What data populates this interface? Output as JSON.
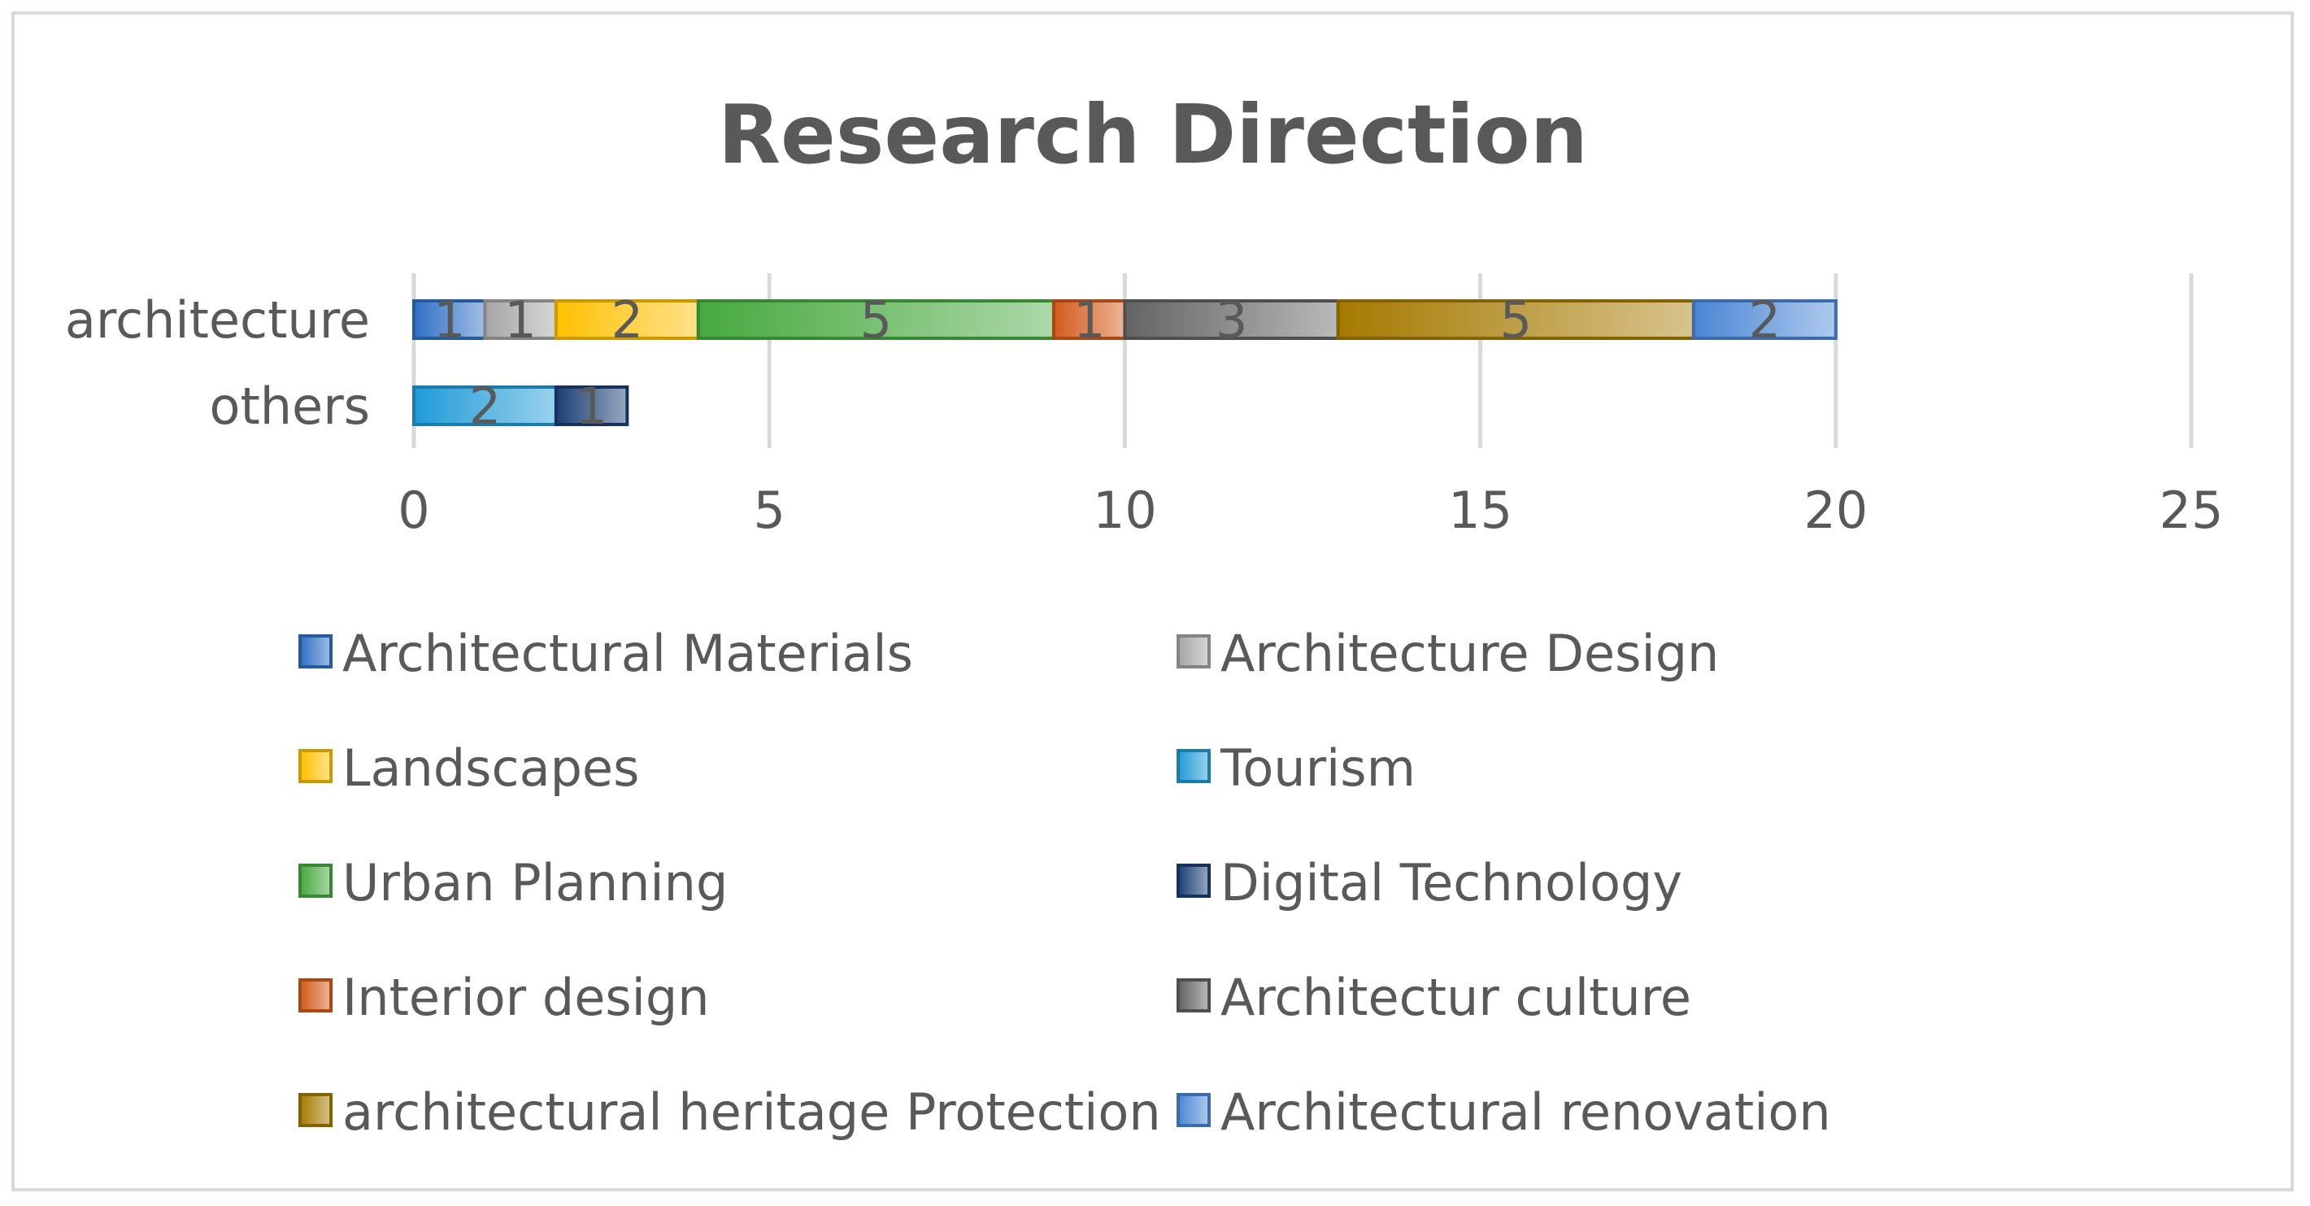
{
  "chart_data": {
    "type": "bar",
    "orientation": "horizontal",
    "stacked": true,
    "title": "Research Direction",
    "categories": [
      "architecture",
      "others"
    ],
    "xlim": [
      0,
      25
    ],
    "xticks": [
      0,
      5,
      10,
      15,
      20,
      25
    ],
    "grid": "vertical",
    "legend_position": "bottom",
    "series": [
      {
        "name": "Architectural Materials",
        "values": [
          1,
          null
        ],
        "color": "#2f6fc4"
      },
      {
        "name": "Architecture Design",
        "values": [
          1,
          null
        ],
        "color": "#a5a5a5"
      },
      {
        "name": "Landscapes",
        "values": [
          2,
          null
        ],
        "color": "#ffc000"
      },
      {
        "name": "Tourism",
        "values": [
          null,
          2
        ],
        "color": "#1f9bd7"
      },
      {
        "name": "Urban Planning",
        "values": [
          5,
          null
        ],
        "color": "#46a93e"
      },
      {
        "name": "Digital Technology",
        "values": [
          null,
          1
        ],
        "color": "#1b3f73"
      },
      {
        "name": "Interior design",
        "values": [
          1,
          null
        ],
        "color": "#d35a1a"
      },
      {
        "name": "Architectur culture",
        "values": [
          3,
          null
        ],
        "color": "#636363"
      },
      {
        "name": "architectural heritage Protection",
        "values": [
          5,
          null
        ],
        "color": "#a57a00"
      },
      {
        "name": "Architectural renovation",
        "values": [
          2,
          null
        ],
        "color": "#4a86d4"
      }
    ]
  }
}
